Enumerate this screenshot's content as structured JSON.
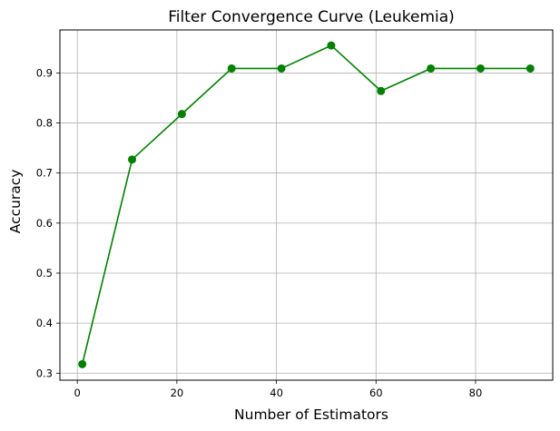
{
  "chart_data": {
    "type": "line",
    "title": "Filter Convergence Curve (Leukemia)",
    "xlabel": "Number of Estimators",
    "ylabel": "Accuracy",
    "x": [
      1,
      11,
      21,
      31,
      41,
      51,
      61,
      71,
      81,
      91
    ],
    "series": [
      {
        "values": [
          0.318,
          0.727,
          0.818,
          0.909,
          0.909,
          0.955,
          0.864,
          0.909,
          0.909,
          0.909
        ],
        "color": "#008000",
        "marker": "circle"
      }
    ],
    "xlim": [
      -3.5,
      95.5
    ],
    "ylim": [
      0.286,
      0.986
    ],
    "xticks": [
      0,
      20,
      40,
      60,
      80
    ],
    "yticks": [
      0.3,
      0.4,
      0.5,
      0.6,
      0.7,
      0.8,
      0.9
    ],
    "xtick_labels": [
      "0",
      "20",
      "40",
      "60",
      "80"
    ],
    "ytick_labels": [
      "0.3",
      "0.4",
      "0.5",
      "0.6",
      "0.7",
      "0.8",
      "0.9"
    ],
    "grid": true
  }
}
